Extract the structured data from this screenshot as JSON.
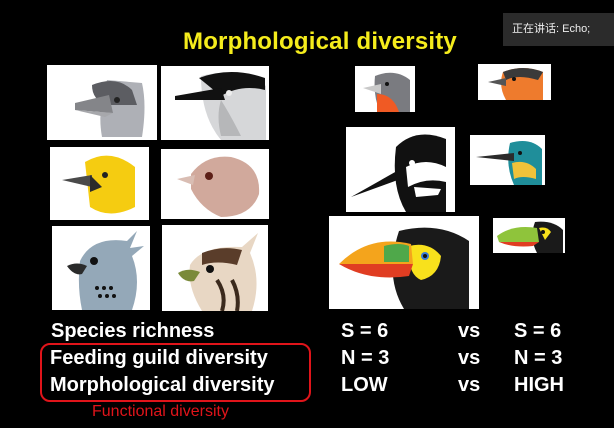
{
  "slide": {
    "title": "Morphological diversity",
    "caption": "Functional diversity"
  },
  "overlay": {
    "speaking_label": "正在讲话: Echo;"
  },
  "birds_left": [
    {
      "name": "grey-finch-head-icon"
    },
    {
      "name": "black-white-bird-head-icon"
    },
    {
      "name": "yellow-bird-head-icon"
    },
    {
      "name": "pink-bird-head-icon"
    },
    {
      "name": "crested-eagle-head-icon"
    },
    {
      "name": "hawk-eagle-head-icon"
    }
  ],
  "birds_right": [
    {
      "name": "red-breasted-finch-head-icon"
    },
    {
      "name": "orange-bird-head-icon"
    },
    {
      "name": "woodpecker-head-icon"
    },
    {
      "name": "kingfisher-head-icon"
    },
    {
      "name": "toucan-head-icon"
    },
    {
      "name": "toucan-small-head-icon"
    }
  ],
  "table": {
    "rows": [
      {
        "label": "Species richness",
        "left": "S = 6",
        "vs": "vs",
        "right": "S = 6"
      },
      {
        "label": "Feeding guild diversity",
        "left": "N = 3",
        "vs": "vs",
        "right": "N = 3"
      },
      {
        "label": "Morphological diversity",
        "left": "LOW",
        "vs": "vs",
        "right": "HIGH"
      }
    ]
  }
}
